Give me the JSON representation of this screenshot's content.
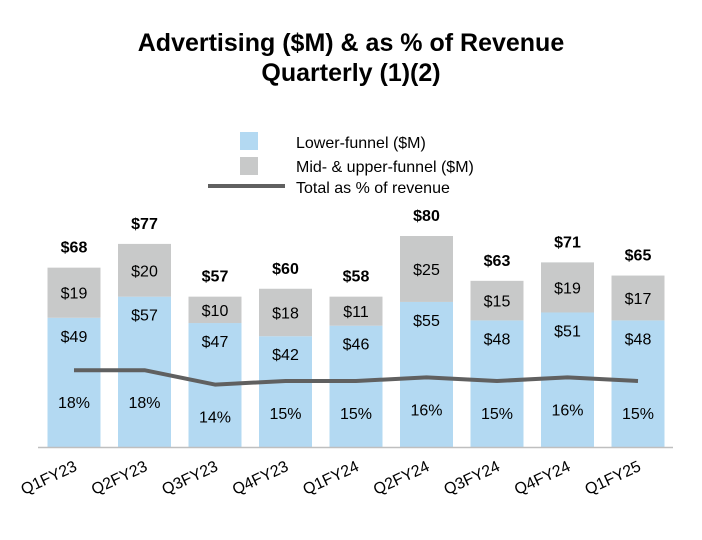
{
  "chart_data": {
    "type": "bar",
    "stacked": true,
    "title_line1": "Advertising ($M) & as % of Revenue",
    "title_line2": "Quarterly (1)(2)",
    "categories": [
      "Q1FY23",
      "Q2FY23",
      "Q3FY23",
      "Q4FY23",
      "Q1FY24",
      "Q2FY24",
      "Q3FY24",
      "Q4FY24",
      "Q1FY25"
    ],
    "series": [
      {
        "name": "Lower-funnel ($M)",
        "color": "#b3d9f2",
        "values": [
          49,
          57,
          47,
          42,
          46,
          55,
          48,
          51,
          48
        ],
        "labels": [
          "$49",
          "$57",
          "$47",
          "$42",
          "$46",
          "$55",
          "$48",
          "$51",
          "$48"
        ]
      },
      {
        "name": "Mid- & upper-funnel ($M)",
        "color": "#c8c9c9",
        "values": [
          19,
          20,
          10,
          18,
          11,
          25,
          15,
          19,
          17
        ],
        "labels": [
          "$19",
          "$20",
          "$10",
          "$18",
          "$11",
          "$25",
          "$15",
          "$19",
          "$17"
        ]
      }
    ],
    "totals": [
      68,
      77,
      57,
      60,
      58,
      80,
      63,
      71,
      65
    ],
    "total_labels": [
      "$68",
      "$77",
      "$57",
      "$60",
      "$58",
      "$80",
      "$63",
      "$71",
      "$65"
    ],
    "line_series": {
      "name": "Total as % of revenue",
      "color": "#606060",
      "values": [
        18,
        18,
        14,
        15,
        15,
        16,
        15,
        16,
        15
      ],
      "labels": [
        "18%",
        "18%",
        "14%",
        "15%",
        "15%",
        "16%",
        "15%",
        "16%",
        "15%"
      ]
    },
    "legend": [
      "Lower-funnel ($M)",
      "Mid- & upper-funnel ($M)",
      "Total as % of revenue"
    ],
    "ylim": [
      0,
      80
    ],
    "xlabel": "",
    "ylabel": "",
    "grid": false,
    "legend_position": "top-center"
  }
}
